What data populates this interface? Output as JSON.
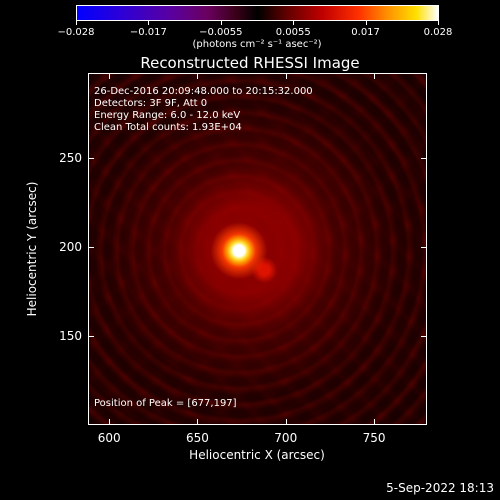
{
  "colorbar": {
    "labels": [
      "−0.028",
      "−0.017",
      "−0.0055",
      "0.0055",
      "0.017",
      "0.028"
    ],
    "unit": "(photons cm⁻² s⁻¹ asec⁻²)",
    "colors": [
      "#0000ff",
      "#5a00a0",
      "#000000",
      "#c00000",
      "#ff9000",
      "#ffffff"
    ]
  },
  "chart_data": {
    "type": "heatmap",
    "title": "Reconstructed RHESSI Image",
    "xlabel": "Heliocentric X (arcsec)",
    "ylabel": "Heliocentric Y (arcsec)",
    "xlim": [
      588,
      780
    ],
    "ylim": [
      100,
      298
    ],
    "x_ticks": [
      "600",
      "650",
      "700",
      "750"
    ],
    "y_ticks": [
      "150",
      "200",
      "250"
    ],
    "peak": [
      677,
      197
    ],
    "annotations": {
      "time": "26-Dec-2016 20:09:48.000 to 20:15:32.000",
      "detectors": "Detectors: 3F 9F, Att 0",
      "energy": "Energy Range: 6.0 - 12.0 keV",
      "method": "Clean     Total counts: 1.93E+04",
      "peak": "Position of Peak = [677,197]"
    }
  },
  "footer": {
    "date": "5-Sep-2022 18:13"
  }
}
